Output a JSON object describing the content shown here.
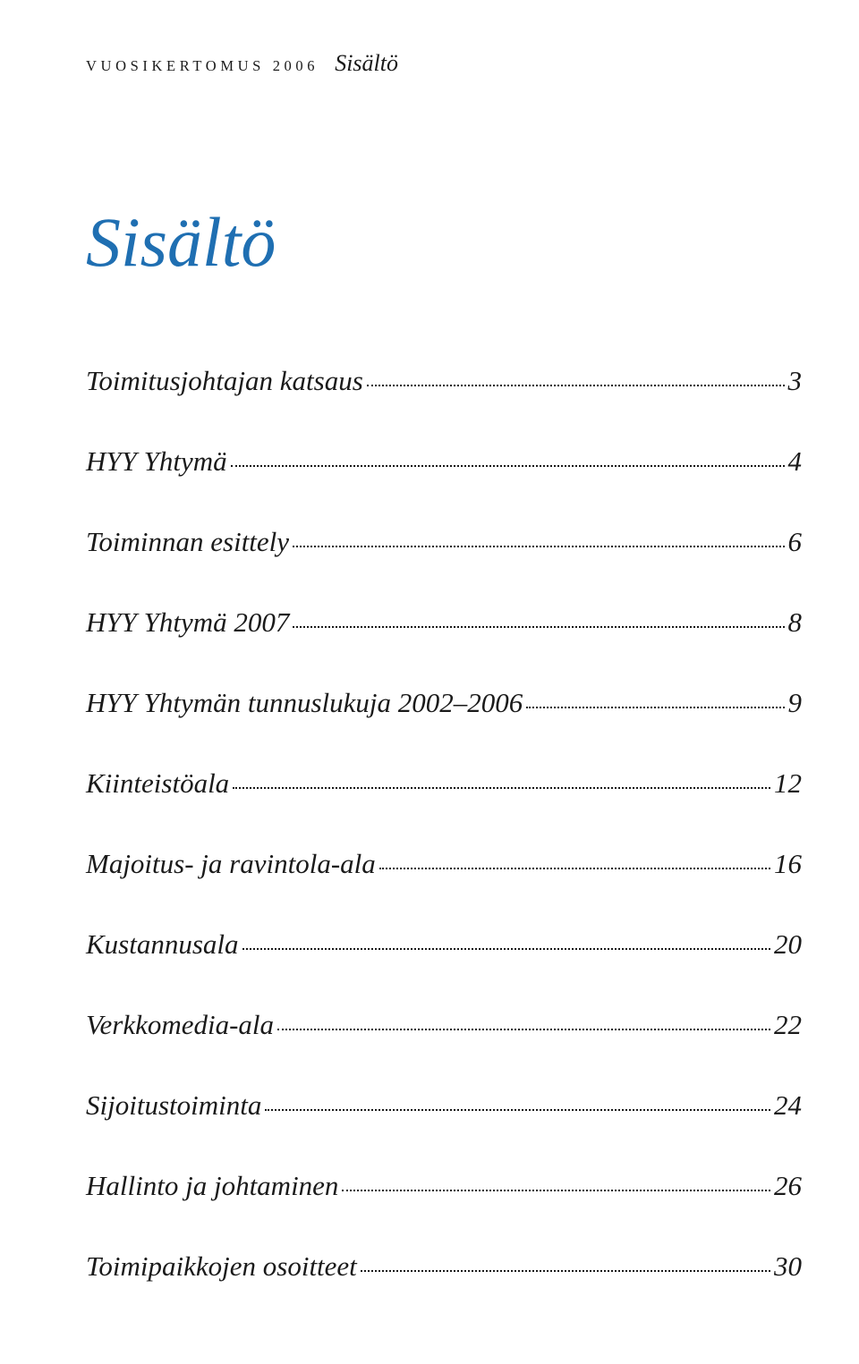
{
  "header": {
    "caps": "VUOSIKERTOMUS 2006",
    "italic": "Sisältö"
  },
  "title": {
    "text": "Sisältö",
    "color": "#1f6fb2",
    "fontsize_pt": 58
  },
  "toc": {
    "label_fontsize_pt": 23,
    "label_color": "#1a1a1a",
    "dot_color": "#1a1a1a",
    "items": [
      {
        "label": "Toimitusjohtajan katsaus",
        "page": "3"
      },
      {
        "label": "HYY Yhtymä",
        "page": "4"
      },
      {
        "label": "Toiminnan esittely",
        "page": "6"
      },
      {
        "label": "HYY Yhtymä 2007",
        "page": "8"
      },
      {
        "label": "HYY Yhtymän tunnuslukuja 2002–2006",
        "page": "9"
      },
      {
        "label": "Kiinteistöala",
        "page": "12"
      },
      {
        "label": "Majoitus- ja ravintola-ala",
        "page": "16"
      },
      {
        "label": "Kustannusala",
        "page": "20"
      },
      {
        "label": "Verkkomedia-ala",
        "page": "22"
      },
      {
        "label": "Sijoitustoiminta",
        "page": "24"
      },
      {
        "label": "Hallinto ja johtaminen",
        "page": "26"
      },
      {
        "label": "Toimipaikkojen osoitteet",
        "page": "30"
      }
    ]
  },
  "page_background": "#ffffff"
}
